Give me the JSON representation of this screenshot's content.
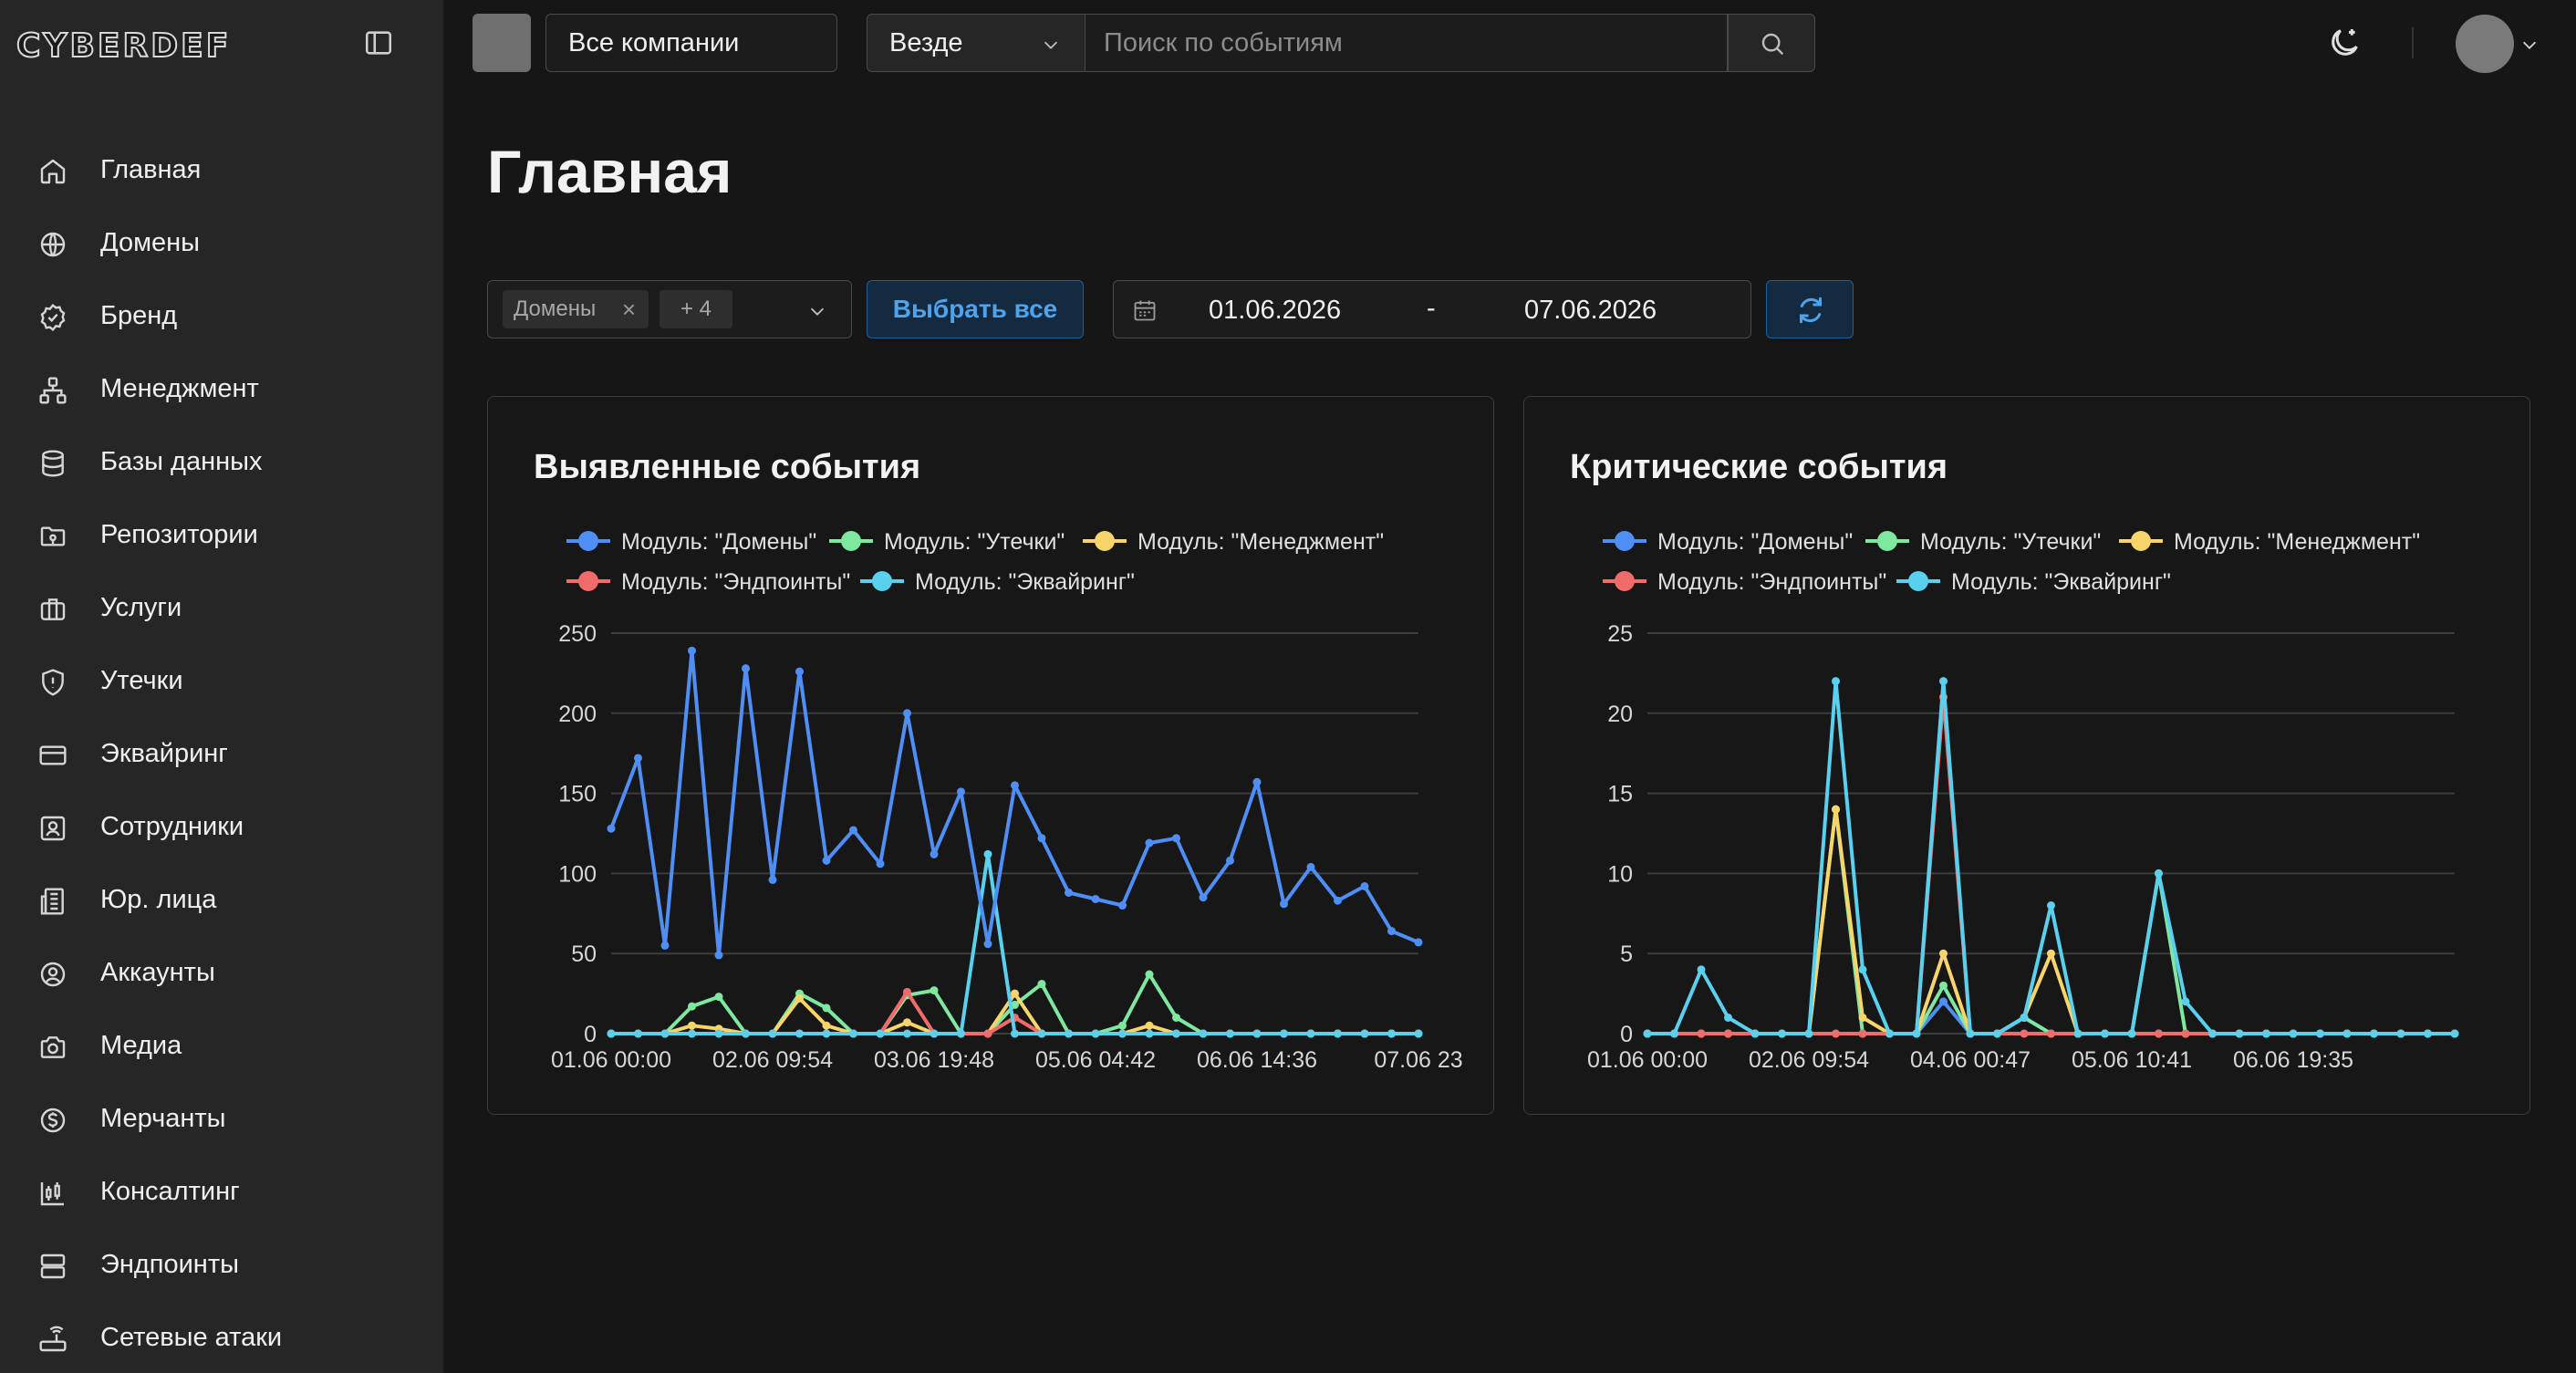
{
  "app": {
    "logo": "CYBERDEF"
  },
  "sidebar": {
    "items": [
      {
        "label": "Главная",
        "icon": "home-icon"
      },
      {
        "label": "Домены",
        "icon": "globe-icon"
      },
      {
        "label": "Бренд",
        "icon": "badge-check-icon"
      },
      {
        "label": "Менеджмент",
        "icon": "network-icon"
      },
      {
        "label": "Базы данных",
        "icon": "database-icon"
      },
      {
        "label": "Репозитории",
        "icon": "folder-git-icon"
      },
      {
        "label": "Услуги",
        "icon": "briefcase-icon"
      },
      {
        "label": "Утечки",
        "icon": "shield-alert-icon"
      },
      {
        "label": "Эквайринг",
        "icon": "credit-card-icon"
      },
      {
        "label": "Сотрудники",
        "icon": "contact-icon"
      },
      {
        "label": "Юр. лица",
        "icon": "building-doc-icon"
      },
      {
        "label": "Аккаунты",
        "icon": "user-circle-icon"
      },
      {
        "label": "Медиа",
        "icon": "camera-icon"
      },
      {
        "label": "Мерчанты",
        "icon": "dollar-circle-icon"
      },
      {
        "label": "Консалтинг",
        "icon": "candlestick-chart-icon"
      },
      {
        "label": "Эндпоинты",
        "icon": "server-icon"
      },
      {
        "label": "Сетевые атаки",
        "icon": "router-icon"
      }
    ]
  },
  "topbar": {
    "company_select": "Все компании",
    "scope_select": "Везде",
    "search_placeholder": "Поиск по событиям"
  },
  "page": {
    "title": "Главная",
    "filter": {
      "tag": "Домены",
      "more": "+ 4"
    },
    "select_all": "Выбрать все",
    "date_from": "01.06.2026",
    "date_sep": "-",
    "date_to": "07.06.2026"
  },
  "colors": {
    "domains": "#4f8ef5",
    "leaks": "#7ee8a0",
    "management": "#f7d56a",
    "endpoints": "#f26b6b",
    "acquiring": "#59d0ee",
    "accent": "#4ea3ee"
  },
  "charts": [
    {
      "title": "Выявленные события",
      "chart_data": {
        "type": "line",
        "title": "Выявленные события",
        "ylim": [
          0,
          250
        ],
        "yticks": [
          "0",
          "50",
          "100",
          "150",
          "200",
          "250"
        ],
        "xtick_labels": [
          "01.06 00:00",
          "02.06 09:54",
          "03.06 19:48",
          "05.06 04:42",
          "06.06 14:36",
          "07.06 23"
        ],
        "grid": true,
        "legend_position": "top",
        "series": [
          {
            "name": "Модуль: \"Домены\"",
            "color": "#4f8ef5",
            "values": [
              128,
              172,
              55,
              239,
              49,
              228,
              96,
              226,
              108,
              127,
              106,
              200,
              112,
              151,
              56,
              155,
              122,
              88,
              84,
              80,
              119,
              122,
              85,
              108,
              157,
              81,
              104,
              83,
              92,
              64,
              57
            ]
          },
          {
            "name": "Модуль: \"Утечки\"",
            "color": "#7ee8a0",
            "values": [
              0,
              0,
              0,
              17,
              23,
              0,
              0,
              25,
              16,
              0,
              0,
              24,
              27,
              0,
              0,
              18,
              31,
              0,
              0,
              5,
              37,
              10,
              0,
              0,
              0,
              0,
              0,
              0,
              0,
              0,
              0
            ]
          },
          {
            "name": "Модуль: \"Менеджмент\"",
            "color": "#f7d56a",
            "values": [
              0,
              0,
              0,
              5,
              3,
              0,
              0,
              22,
              5,
              0,
              0,
              7,
              0,
              0,
              0,
              25,
              0,
              0,
              0,
              0,
              5,
              0,
              0,
              0,
              0,
              0,
              0,
              0,
              0,
              0,
              0
            ]
          },
          {
            "name": "Модуль: \"Эндпоинты\"",
            "color": "#f26b6b",
            "values": [
              0,
              0,
              0,
              0,
              0,
              0,
              0,
              0,
              0,
              0,
              0,
              26,
              0,
              0,
              0,
              10,
              0,
              0,
              0,
              0,
              0,
              0,
              0,
              0,
              0,
              0,
              0,
              0,
              0,
              0,
              0
            ]
          },
          {
            "name": "Модуль: \"Эквайринг\"",
            "color": "#59d0ee",
            "values": [
              0,
              0,
              0,
              0,
              0,
              0,
              0,
              0,
              0,
              0,
              0,
              0,
              0,
              0,
              112,
              0,
              0,
              0,
              0,
              0,
              0,
              0,
              0,
              0,
              0,
              0,
              0,
              0,
              0,
              0,
              0
            ]
          }
        ]
      }
    },
    {
      "title": "Критические события",
      "chart_data": {
        "type": "line",
        "title": "Критические события",
        "ylim": [
          0,
          25
        ],
        "yticks": [
          "0",
          "5",
          "10",
          "15",
          "20",
          "25"
        ],
        "xtick_labels": [
          "01.06 00:00",
          "02.06 09:54",
          "04.06 00:47",
          "05.06 10:41",
          "06.06 19:35"
        ],
        "grid": true,
        "legend_position": "top",
        "series": [
          {
            "name": "Модуль: \"Домены\"",
            "color": "#4f8ef5",
            "values": [
              0,
              0,
              0,
              0,
              0,
              0,
              0,
              0,
              0,
              0,
              0,
              2,
              0,
              0,
              0,
              0,
              0,
              0,
              0,
              0,
              0,
              0,
              0,
              0,
              0,
              0,
              0,
              0,
              0,
              0,
              0
            ]
          },
          {
            "name": "Модуль: \"Утечки\"",
            "color": "#7ee8a0",
            "values": [
              0,
              0,
              0,
              0,
              0,
              0,
              0,
              14,
              0,
              0,
              0,
              3,
              0,
              0,
              1,
              0,
              0,
              0,
              0,
              10,
              0,
              0,
              0,
              0,
              0,
              0,
              0,
              0,
              0,
              0,
              0
            ]
          },
          {
            "name": "Модуль: \"Менеджмент\"",
            "color": "#f7d56a",
            "values": [
              0,
              0,
              0,
              0,
              0,
              0,
              0,
              14,
              1,
              0,
              0,
              5,
              0,
              0,
              1,
              5,
              0,
              0,
              0,
              0,
              0,
              0,
              0,
              0,
              0,
              0,
              0,
              0,
              0,
              0,
              0
            ]
          },
          {
            "name": "Модуль: \"Эндпоинты\"",
            "color": "#f26b6b",
            "values": [
              0,
              0,
              0,
              0,
              0,
              0,
              0,
              0,
              0,
              0,
              0,
              21,
              0,
              0,
              0,
              0,
              0,
              0,
              0,
              0,
              0,
              0,
              0,
              0,
              0,
              0,
              0,
              0,
              0,
              0,
              0
            ]
          },
          {
            "name": "Модуль: \"Эквайринг\"",
            "color": "#59d0ee",
            "values": [
              0,
              0,
              4,
              1,
              0,
              0,
              0,
              22,
              4,
              0,
              0,
              22,
              0,
              0,
              1,
              8,
              0,
              0,
              0,
              10,
              2,
              0,
              0,
              0,
              0,
              0,
              0,
              0,
              0,
              0,
              0
            ]
          }
        ]
      }
    }
  ]
}
